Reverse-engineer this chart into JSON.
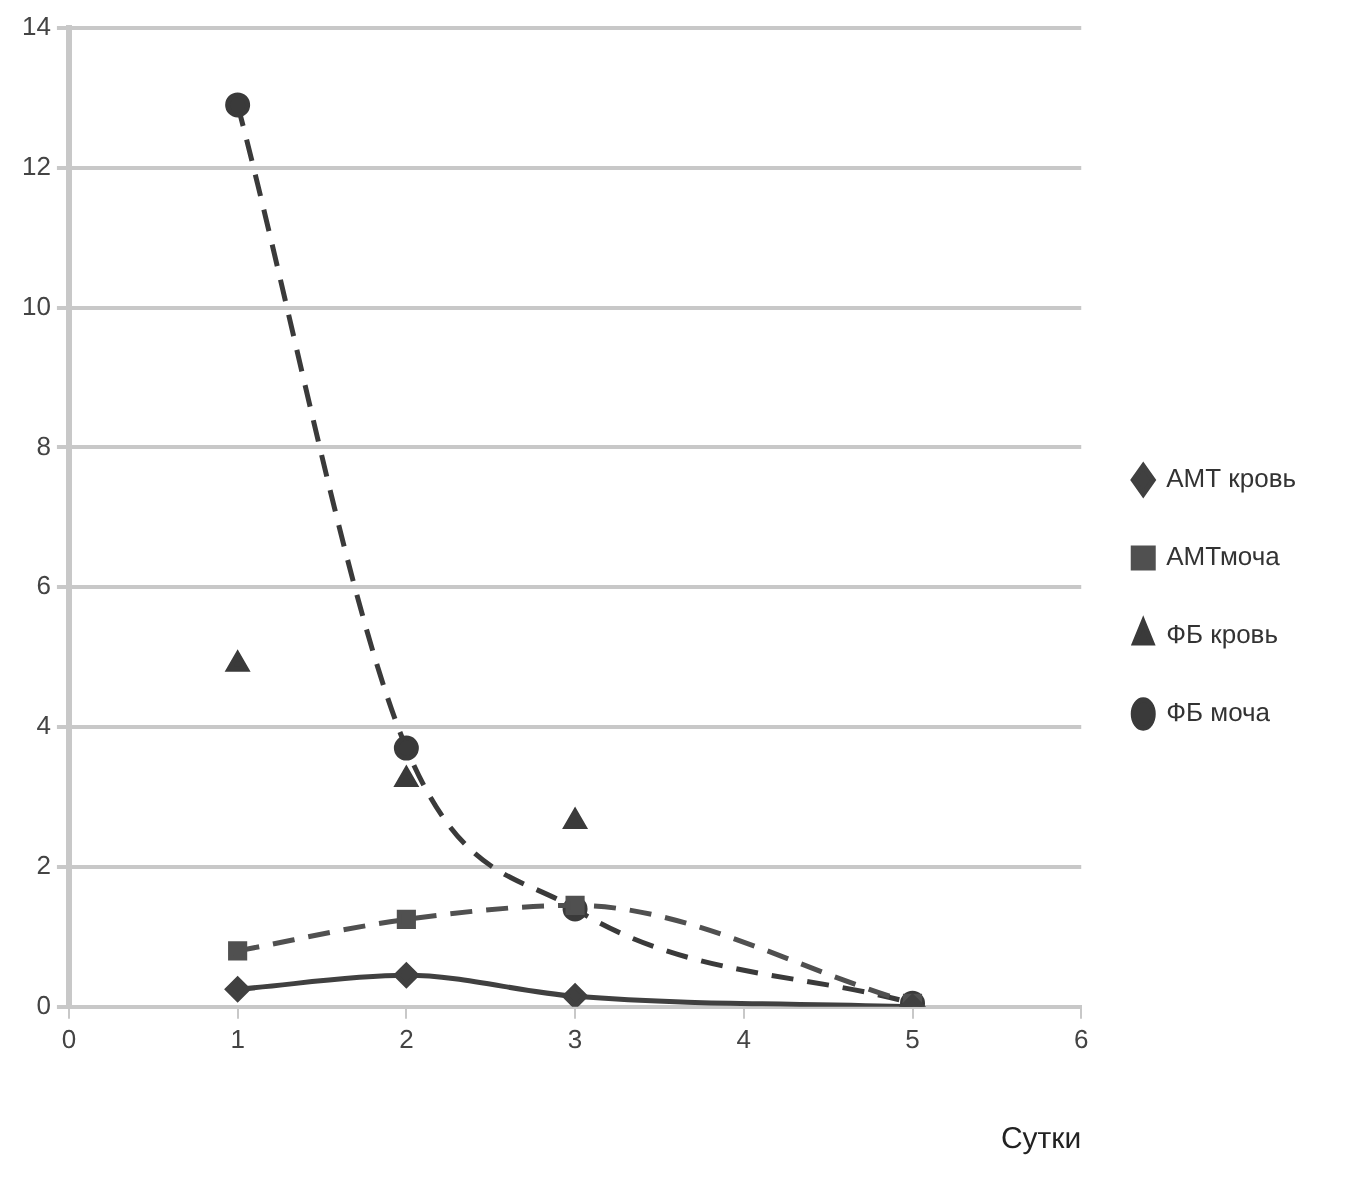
{
  "chart_data": {
    "type": "line",
    "xlabel": "Сутки",
    "x": [
      1,
      2,
      3,
      5
    ],
    "xlim": [
      0,
      6
    ],
    "xticks": [
      0,
      1,
      2,
      3,
      4,
      5,
      6
    ],
    "ylim": [
      0,
      14
    ],
    "yticks": [
      0,
      2,
      4,
      6,
      8,
      10,
      12,
      14
    ],
    "grid": "y",
    "legend": "right",
    "series": [
      {
        "name": "АМТ кровь",
        "color": "#404040",
        "values": [
          0.25,
          0.45,
          0.15,
          0
        ],
        "marker": "diamond",
        "line_style": "solid"
      },
      {
        "name": "АМТмоча",
        "color": "#505050",
        "values": [
          0.8,
          1.25,
          1.45,
          0.05
        ],
        "marker": "square",
        "line_style": "dashed"
      },
      {
        "name": "ФБ кровь",
        "type": "scatter",
        "color": "#3a3a3a",
        "values": [
          4.9,
          3.25,
          2.65,
          null
        ],
        "marker": "triangle"
      },
      {
        "name": "ФБ моча",
        "color": "#3a3a3a",
        "values": [
          12.9,
          3.7,
          1.4,
          0.05
        ],
        "marker": "circle",
        "line_style": "dashed"
      }
    ]
  }
}
